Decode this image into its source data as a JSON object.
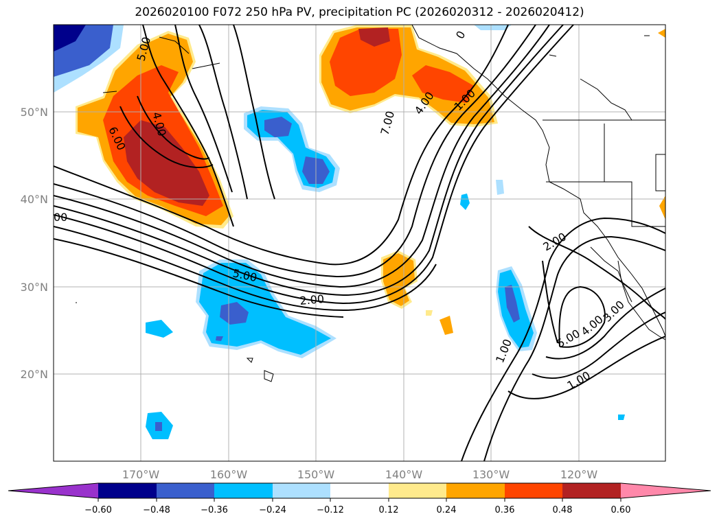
{
  "title": "2026020100 F072 250 hPa PV, precipitation PC (2026020312 - 2026020412)",
  "lat_labels": [
    "50°N",
    "40°N",
    "30°N",
    "20°N"
  ],
  "lon_labels": [
    "170°W",
    "160°W",
    "150°W",
    "140°W",
    "130°W",
    "120°W"
  ],
  "colorbar": {
    "ticks": [
      "−0.60",
      "−0.48",
      "−0.36",
      "−0.24",
      "−0.12",
      "0.12",
      "0.24",
      "0.36",
      "0.48",
      "0.60"
    ],
    "colors": [
      "#9932CC",
      "#00008B",
      "#3a5fcd",
      "#00BFFF",
      "#ADE0FF",
      "#FFFFFF",
      "#FFEA8C",
      "#FFA500",
      "#FF4500",
      "#B22222",
      "#FF88AA"
    ]
  },
  "contour_labels": [
    "5.00",
    "4.00",
    "6.00",
    "7.00",
    "4.00",
    "1.00",
    "5.00",
    "2.00",
    "2.00",
    "1.00",
    "5.00",
    "4.00",
    "3.00",
    "1.00",
    "00",
    "0"
  ]
}
